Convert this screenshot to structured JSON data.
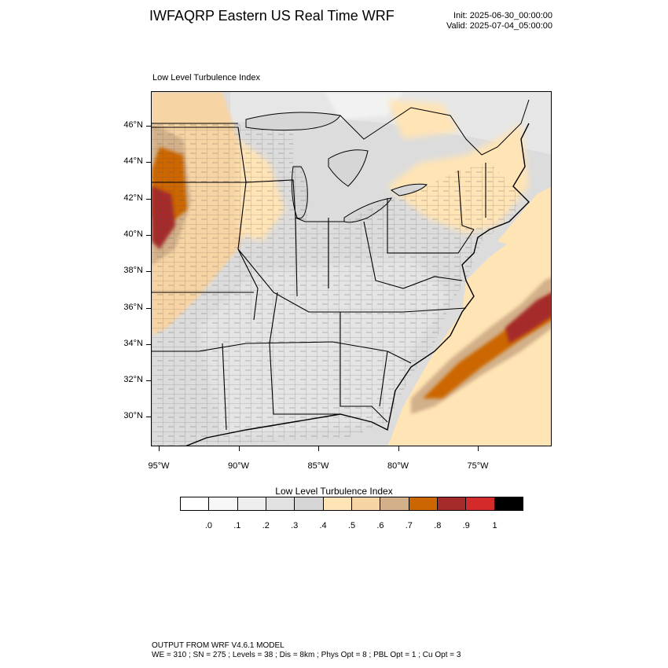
{
  "title": "IWFAQRP Eastern US Real Time WRF",
  "init_time": "Init: 2025-06-30_00:00:00",
  "valid_time": "Valid: 2025-07-04_05:00:00",
  "panel_label": "Low Level Turbulence Index",
  "map": {
    "region": "Eastern United States",
    "layers": [
      "state-borders",
      "county-borders",
      "coastlines",
      "great-lakes"
    ],
    "lat_labels": [
      "46°N",
      "44°N",
      "42°N",
      "40°N",
      "38°N",
      "36°N",
      "34°N",
      "32°N",
      "30°N"
    ],
    "lon_labels": [
      "95°W",
      "90°W",
      "85°W",
      "80°W",
      "75°W"
    ],
    "lat_values": [
      46,
      44,
      42,
      40,
      38,
      36,
      34,
      32,
      30
    ],
    "lon_values": [
      -95,
      -90,
      -85,
      -80,
      -75
    ]
  },
  "colorbar": {
    "title": "Low Level Turbulence Index",
    "colors": [
      "#ffffff",
      "#f7f7f7",
      "#eeeeee",
      "#e2e2e2",
      "#d6d6d6",
      "#ffe4b5",
      "#f7d4a4",
      "#d2b08a",
      "#cc6600",
      "#a52a2a",
      "#d42a2a",
      "#000000"
    ],
    "labels": [
      ".0",
      ".1",
      ".2",
      ".3",
      ".4",
      ".5",
      ".6",
      ".7",
      ".8",
      ".9",
      "1"
    ]
  },
  "footer": {
    "line1": "OUTPUT FROM WRF V4.6.1 MODEL",
    "line2": "WE = 310 ; SN = 275 ; Levels = 38 ; Dis = 8km ; Phys Opt = 8 ; PBL Opt = 1 ; Cu Opt = 3"
  }
}
